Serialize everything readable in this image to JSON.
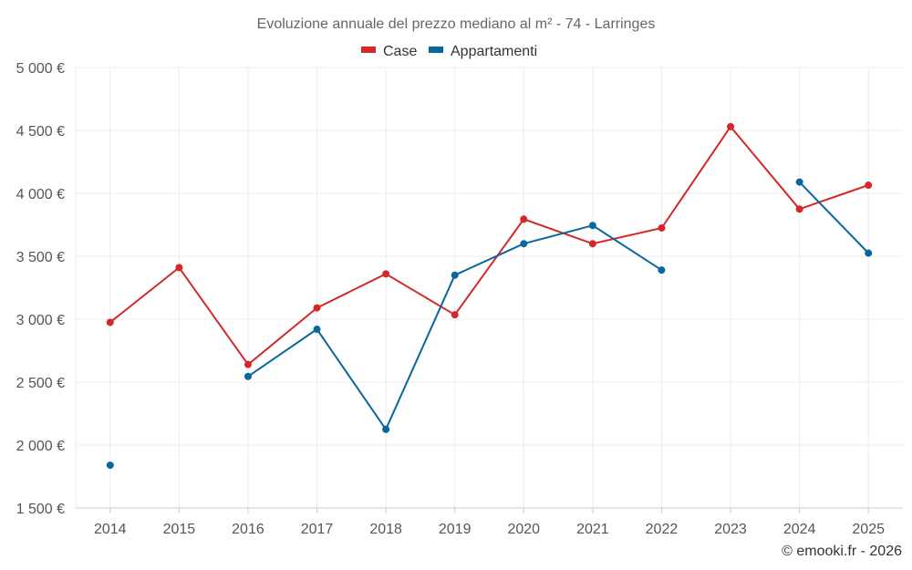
{
  "chart_data": {
    "type": "line",
    "title": "Evoluzione annuale del prezzo mediano al m² - 74 - Larringes",
    "categories": [
      "2014",
      "2015",
      "2016",
      "2017",
      "2018",
      "2019",
      "2020",
      "2021",
      "2022",
      "2023",
      "2024",
      "2025"
    ],
    "ylim": [
      1500,
      5000
    ],
    "yticks": [
      1500,
      2000,
      2500,
      3000,
      3500,
      4000,
      4500,
      5000
    ],
    "ytick_labels": [
      "1 500 €",
      "2 000 €",
      "2 500 €",
      "3 000 €",
      "3 500 €",
      "4 000 €",
      "4 500 €",
      "5 000 €"
    ],
    "legend_position": "top-center",
    "grid": true,
    "series": [
      {
        "name": "Case",
        "color": "#d62728",
        "values": [
          2975,
          3410,
          2640,
          3090,
          3360,
          3035,
          3795,
          3600,
          3725,
          4530,
          3875,
          4065
        ]
      },
      {
        "name": "Appartamenti",
        "color": "#08679c",
        "values": [
          1840,
          null,
          2545,
          2920,
          2125,
          3350,
          3600,
          3745,
          3390,
          null,
          4090,
          3525
        ]
      }
    ],
    "credit": "© emooki.fr - 2026"
  }
}
